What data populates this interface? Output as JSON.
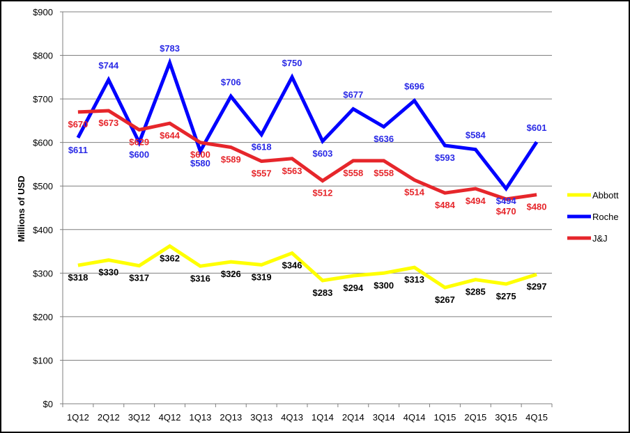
{
  "chart_data": {
    "type": "line",
    "title": "",
    "xlabel": "",
    "ylabel": "Millions of USD",
    "ylim": [
      0,
      900
    ],
    "ytick_step": 100,
    "y_prefix": "$",
    "grid": true,
    "legend_position": "right",
    "categories": [
      "1Q12",
      "2Q12",
      "3Q12",
      "4Q12",
      "1Q13",
      "2Q13",
      "3Q13",
      "4Q13",
      "1Q14",
      "2Q14",
      "3Q14",
      "4Q14",
      "1Q15",
      "2Q15",
      "3Q15",
      "4Q15"
    ],
    "series": [
      {
        "name": "Abbott",
        "color": "#ffff00",
        "label_color": "#000000",
        "label_position": "below",
        "values": [
          318,
          330,
          317,
          362,
          316,
          326,
          319,
          346,
          283,
          294,
          300,
          313,
          267,
          285,
          275,
          297
        ]
      },
      {
        "name": "Roche",
        "color": "#0000ff",
        "label_color": "#2a2ae6",
        "label_position": "alternate",
        "values": [
          611,
          744,
          600,
          783,
          580,
          706,
          618,
          750,
          603,
          677,
          636,
          696,
          593,
          584,
          494,
          601
        ]
      },
      {
        "name": "J&J",
        "color": "#e6262b",
        "label_color": "#e6262b",
        "label_position": "below",
        "values": [
          670,
          673,
          629,
          644,
          600,
          589,
          557,
          563,
          512,
          558,
          558,
          514,
          484,
          494,
          470,
          480
        ]
      }
    ]
  }
}
